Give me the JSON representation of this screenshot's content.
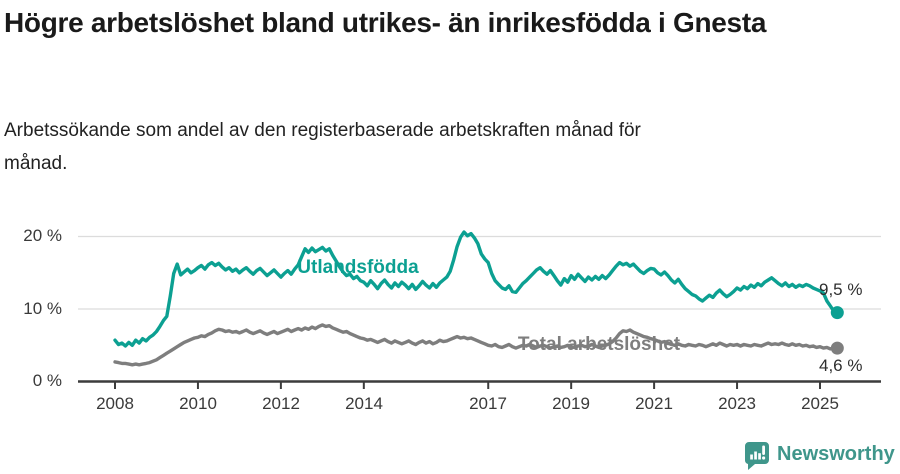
{
  "header": {
    "title": "Högre arbetslöshet bland utrikes- än inrikesfödda i Gnesta",
    "subtitle": "Arbetssökande som andel av den registerbaserade arbetskraften månad för månad."
  },
  "footer": {
    "brand": "Newsworthy",
    "logo_icon": "speech-bubble-bar-chart-icon",
    "brand_color": "#3f968b"
  },
  "chart_data": {
    "type": "line",
    "title": "Högre arbetslöshet bland utrikes- än inrikesfödda i Gnesta",
    "subtitle": "Arbetssökande som andel av den registerbaserade arbetskraften månad för månad.",
    "x_unit": "month",
    "x_start": "2008-01",
    "x_end": "2025-06",
    "grid": "horizontal",
    "legend_position": "inline-labels",
    "ylim": [
      0,
      22
    ],
    "y_tick_labels": [
      "20 %",
      "10 %",
      "0 %"
    ],
    "y_tick_values": [
      20,
      10,
      0
    ],
    "x_tick_labels": [
      "2008",
      "2010",
      "2012",
      "2014",
      "2017",
      "2019",
      "2021",
      "2023",
      "2025"
    ],
    "x_tick_values": [
      2008,
      2010,
      2012,
      2014,
      2017,
      2019,
      2021,
      2023,
      2025
    ],
    "series": [
      {
        "id": "utlandsfodda",
        "name": "Utlandsfödda",
        "color": "#0ca092",
        "end_label": "9,5 %",
        "end_value": 9.5,
        "values": [
          5.7,
          5.1,
          5.3,
          4.9,
          5.4,
          5.0,
          5.7,
          5.3,
          5.9,
          5.6,
          6.1,
          6.4,
          6.9,
          7.6,
          8.4,
          9.0,
          11.8,
          14.9,
          16.2,
          14.7,
          15.1,
          15.5,
          15.0,
          15.3,
          15.7,
          16.0,
          15.5,
          16.1,
          16.4,
          16.0,
          16.3,
          15.8,
          15.4,
          15.7,
          15.2,
          15.5,
          15.0,
          15.4,
          15.7,
          15.2,
          14.8,
          15.3,
          15.6,
          15.1,
          14.6,
          15.0,
          15.4,
          14.9,
          14.4,
          14.9,
          15.3,
          14.8,
          15.5,
          16.1,
          17.2,
          18.3,
          17.8,
          18.4,
          17.9,
          18.2,
          18.5,
          18.0,
          18.3,
          17.4,
          16.6,
          15.8,
          15.1,
          14.6,
          14.8,
          14.2,
          14.5,
          13.9,
          13.7,
          13.2,
          13.9,
          13.4,
          12.8,
          13.5,
          14.0,
          13.4,
          12.9,
          13.6,
          13.1,
          13.7,
          13.3,
          12.8,
          13.4,
          12.7,
          13.2,
          13.8,
          13.3,
          12.9,
          13.5,
          13.0,
          13.6,
          14.0,
          14.4,
          15.2,
          16.8,
          18.6,
          19.9,
          20.6,
          20.1,
          20.4,
          19.8,
          19.0,
          17.6,
          16.9,
          16.4,
          14.9,
          13.9,
          13.4,
          12.9,
          12.7,
          13.2,
          12.4,
          12.3,
          12.9,
          13.5,
          13.9,
          14.4,
          14.9,
          15.4,
          15.7,
          15.2,
          14.8,
          15.3,
          14.6,
          13.9,
          13.3,
          14.2,
          13.7,
          14.6,
          14.1,
          14.8,
          14.3,
          13.8,
          14.4,
          14.0,
          14.5,
          14.1,
          14.6,
          14.2,
          14.7,
          15.3,
          15.9,
          16.4,
          16.1,
          16.3,
          15.9,
          16.2,
          15.7,
          15.2,
          14.9,
          15.3,
          15.6,
          15.5,
          15.0,
          14.7,
          15.1,
          14.6,
          14.0,
          13.6,
          14.1,
          13.4,
          12.8,
          12.4,
          12.0,
          11.8,
          11.4,
          11.1,
          11.5,
          11.9,
          11.6,
          12.2,
          12.6,
          12.1,
          11.7,
          12.0,
          12.4,
          12.9,
          12.6,
          13.1,
          12.8,
          13.3,
          13.0,
          13.5,
          13.2,
          13.7,
          14.0,
          14.3,
          13.9,
          13.5,
          13.2,
          13.6,
          13.1,
          13.4,
          13.0,
          13.3,
          13.1,
          13.4,
          13.2,
          12.9,
          12.7,
          12.5,
          12.2,
          11.1,
          10.4,
          9.7,
          9.5
        ]
      },
      {
        "id": "total",
        "name": "Total arbetslöshet",
        "color": "#7e7e7e",
        "end_label": "4,6 %",
        "end_value": 4.6,
        "values": [
          2.7,
          2.6,
          2.5,
          2.5,
          2.4,
          2.3,
          2.4,
          2.3,
          2.4,
          2.5,
          2.6,
          2.8,
          3.0,
          3.3,
          3.6,
          3.9,
          4.2,
          4.5,
          4.8,
          5.1,
          5.4,
          5.6,
          5.8,
          6.0,
          6.1,
          6.3,
          6.2,
          6.5,
          6.7,
          7.0,
          7.2,
          7.1,
          6.9,
          7.0,
          6.8,
          6.9,
          6.7,
          6.9,
          7.1,
          6.8,
          6.6,
          6.8,
          7.0,
          6.7,
          6.5,
          6.7,
          6.9,
          6.6,
          6.8,
          7.0,
          7.2,
          6.9,
          7.1,
          7.3,
          7.1,
          7.4,
          7.2,
          7.5,
          7.3,
          7.6,
          7.8,
          7.6,
          7.7,
          7.4,
          7.2,
          7.0,
          6.8,
          6.9,
          6.6,
          6.4,
          6.2,
          6.0,
          5.9,
          5.7,
          5.8,
          5.6,
          5.4,
          5.6,
          5.8,
          5.5,
          5.3,
          5.6,
          5.4,
          5.2,
          5.4,
          5.6,
          5.3,
          5.1,
          5.4,
          5.6,
          5.3,
          5.5,
          5.2,
          5.4,
          5.7,
          5.5,
          5.6,
          5.8,
          6.0,
          6.2,
          6.0,
          6.1,
          5.9,
          6.0,
          5.8,
          5.6,
          5.4,
          5.2,
          5.0,
          4.9,
          5.1,
          4.8,
          4.7,
          4.9,
          5.1,
          4.8,
          4.6,
          4.8,
          5.0,
          4.9,
          5.1,
          4.9,
          4.7,
          4.9,
          5.0,
          4.8,
          4.6,
          4.8,
          4.9,
          4.7,
          4.8,
          5.0,
          4.8,
          4.7,
          4.9,
          5.0,
          4.8,
          4.9,
          5.1,
          4.9,
          4.7,
          4.9,
          5.0,
          5.2,
          5.5,
          6.0,
          6.6,
          7.0,
          6.9,
          7.1,
          6.8,
          6.6,
          6.4,
          6.2,
          6.1,
          5.9,
          5.8,
          5.6,
          5.4,
          5.5,
          5.3,
          5.1,
          5.0,
          5.2,
          5.0,
          4.9,
          5.1,
          5.0,
          4.9,
          5.1,
          5.0,
          4.8,
          5.0,
          5.2,
          5.0,
          5.3,
          5.1,
          4.9,
          5.1,
          5.0,
          5.1,
          4.9,
          5.1,
          5.0,
          4.9,
          5.1,
          5.0,
          4.9,
          5.1,
          5.3,
          5.1,
          5.2,
          5.1,
          5.3,
          5.1,
          5.0,
          5.2,
          5.0,
          5.1,
          4.9,
          5.0,
          4.8,
          4.9,
          4.7,
          4.8,
          4.6,
          4.7,
          4.5,
          4.6,
          4.6
        ]
      }
    ]
  }
}
